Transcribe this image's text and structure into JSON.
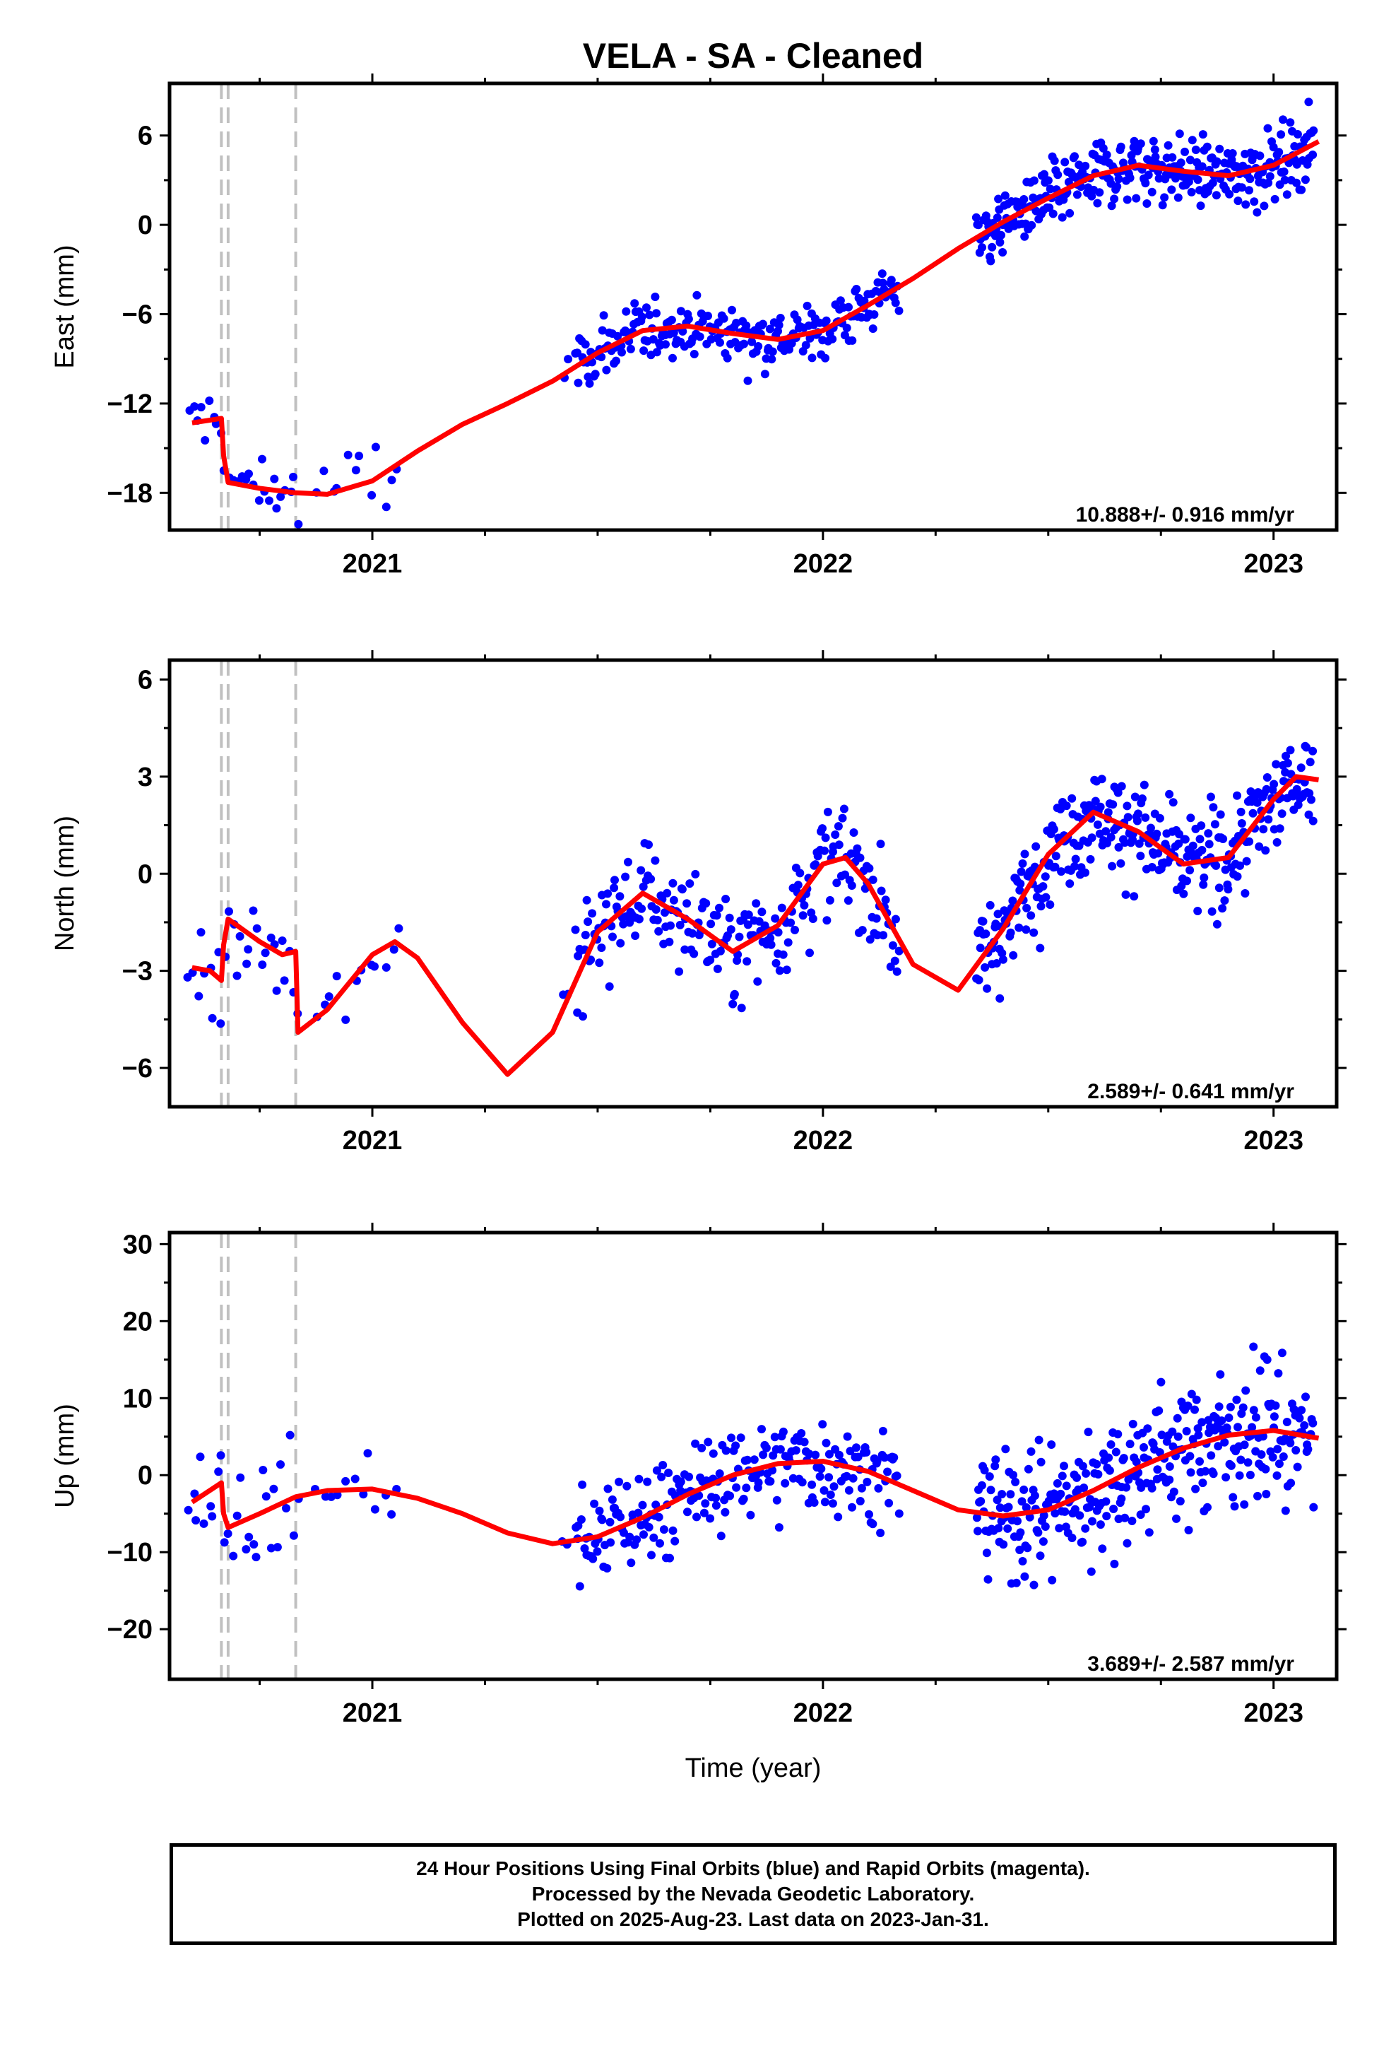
{
  "title": "VELA  - SA - Cleaned",
  "xlabel": "Time (year)",
  "caption": {
    "line1": "24 Hour Positions Using Final Orbits (blue) and Rapid Orbits (magenta).",
    "line2": "Processed by the Nevada Geodetic Laboratory.",
    "line3": "Plotted on 2025-Aug-23. Last data on 2023-Jan-31."
  },
  "colors": {
    "data": "#0000ff",
    "model": "#ff0000",
    "steps": "#c0c0c0",
    "frame": "#000000"
  },
  "chart_data": [
    {
      "type": "scatter",
      "panel": "East",
      "ylabel": "East (mm)",
      "rate_label": "10.888+/- 0.916 mm/yr",
      "xlim": [
        2020.55,
        2023.14
      ],
      "ylim": [
        -20.5,
        9.5
      ],
      "yticks": [
        -18,
        -12,
        -6,
        0,
        6
      ],
      "xticks": [
        2021,
        2022,
        2023
      ],
      "steps": [
        2020.665,
        2020.68,
        2020.83
      ],
      "model": [
        [
          2020.6,
          -13.3
        ],
        [
          2020.665,
          -13.0
        ],
        [
          2020.67,
          -15.5
        ],
        [
          2020.68,
          -17.3
        ],
        [
          2020.75,
          -17.7
        ],
        [
          2020.83,
          -18.0
        ],
        [
          2020.9,
          -18.1
        ],
        [
          2021.0,
          -17.2
        ],
        [
          2021.1,
          -15.2
        ],
        [
          2021.2,
          -13.4
        ],
        [
          2021.3,
          -12.0
        ],
        [
          2021.4,
          -10.5
        ],
        [
          2021.5,
          -8.6
        ],
        [
          2021.6,
          -7.1
        ],
        [
          2021.7,
          -6.8
        ],
        [
          2021.8,
          -7.3
        ],
        [
          2021.9,
          -7.7
        ],
        [
          2022.0,
          -7.1
        ],
        [
          2022.1,
          -5.4
        ],
        [
          2022.2,
          -3.6
        ],
        [
          2022.3,
          -1.6
        ],
        [
          2022.4,
          0.2
        ],
        [
          2022.5,
          1.8
        ],
        [
          2022.6,
          3.3
        ],
        [
          2022.7,
          4.0
        ],
        [
          2022.8,
          3.6
        ],
        [
          2022.9,
          3.3
        ],
        [
          2023.0,
          4.0
        ],
        [
          2023.1,
          5.6
        ]
      ],
      "clusters": [
        {
          "x0": 2020.59,
          "x1": 2020.84,
          "n": 28,
          "sd": 1.8
        },
        {
          "x0": 2020.87,
          "x1": 2021.07,
          "n": 12,
          "sd": 2.0
        },
        {
          "x0": 2021.42,
          "x1": 2021.44,
          "n": 2,
          "sd": 1.0
        },
        {
          "x0": 2021.45,
          "x1": 2022.17,
          "n": 230,
          "sd": 1.4
        },
        {
          "x0": 2022.34,
          "x1": 2023.09,
          "n": 330,
          "sd": 1.6
        }
      ]
    },
    {
      "type": "scatter",
      "panel": "North",
      "ylabel": "North (mm)",
      "rate_label": "2.589+/- 0.641 mm/yr",
      "xlim": [
        2020.55,
        2023.14
      ],
      "ylim": [
        -7.2,
        6.6
      ],
      "yticks": [
        -6,
        -3,
        0,
        3,
        6
      ],
      "xticks": [
        2021,
        2022,
        2023
      ],
      "steps": [
        2020.665,
        2020.68,
        2020.83
      ],
      "model": [
        [
          2020.6,
          -2.9
        ],
        [
          2020.64,
          -3.0
        ],
        [
          2020.665,
          -3.3
        ],
        [
          2020.67,
          -2.2
        ],
        [
          2020.68,
          -1.4
        ],
        [
          2020.75,
          -2.1
        ],
        [
          2020.8,
          -2.5
        ],
        [
          2020.83,
          -2.4
        ],
        [
          2020.835,
          -4.9
        ],
        [
          2020.9,
          -4.2
        ],
        [
          2021.0,
          -2.5
        ],
        [
          2021.05,
          -2.1
        ],
        [
          2021.1,
          -2.6
        ],
        [
          2021.2,
          -4.6
        ],
        [
          2021.3,
          -6.2
        ],
        [
          2021.4,
          -4.9
        ],
        [
          2021.5,
          -1.8
        ],
        [
          2021.6,
          -0.6
        ],
        [
          2021.7,
          -1.4
        ],
        [
          2021.8,
          -2.4
        ],
        [
          2021.9,
          -1.6
        ],
        [
          2022.0,
          0.3
        ],
        [
          2022.05,
          0.5
        ],
        [
          2022.1,
          -0.3
        ],
        [
          2022.2,
          -2.8
        ],
        [
          2022.3,
          -3.6
        ],
        [
          2022.4,
          -1.7
        ],
        [
          2022.5,
          0.6
        ],
        [
          2022.6,
          1.9
        ],
        [
          2022.7,
          1.3
        ],
        [
          2022.8,
          0.3
        ],
        [
          2022.9,
          0.5
        ],
        [
          2023.0,
          2.3
        ],
        [
          2023.05,
          3.0
        ],
        [
          2023.1,
          2.9
        ]
      ],
      "clusters": [
        {
          "x0": 2020.59,
          "x1": 2020.84,
          "n": 28,
          "sd": 1.1
        },
        {
          "x0": 2020.87,
          "x1": 2021.07,
          "n": 12,
          "sd": 0.9
        },
        {
          "x0": 2021.42,
          "x1": 2021.44,
          "n": 2,
          "sd": 0.5
        },
        {
          "x0": 2021.45,
          "x1": 2022.17,
          "n": 230,
          "sd": 1.2
        },
        {
          "x0": 2022.34,
          "x1": 2023.09,
          "n": 330,
          "sd": 1.1
        }
      ]
    },
    {
      "type": "scatter",
      "panel": "Up",
      "ylabel": "Up (mm)",
      "rate_label": "3.689+/- 2.587 mm/yr",
      "xlim": [
        2020.55,
        2023.14
      ],
      "ylim": [
        -26.5,
        31.5
      ],
      "yticks": [
        -20,
        -10,
        0,
        10,
        20,
        30
      ],
      "xticks": [
        2021,
        2022,
        2023
      ],
      "steps": [
        2020.665,
        2020.68,
        2020.83
      ],
      "model": [
        [
          2020.6,
          -3.5
        ],
        [
          2020.665,
          -1.0
        ],
        [
          2020.67,
          -5.0
        ],
        [
          2020.68,
          -6.8
        ],
        [
          2020.75,
          -5.0
        ],
        [
          2020.83,
          -2.8
        ],
        [
          2020.9,
          -2.0
        ],
        [
          2021.0,
          -1.8
        ],
        [
          2021.1,
          -3.0
        ],
        [
          2021.2,
          -5.0
        ],
        [
          2021.3,
          -7.5
        ],
        [
          2021.4,
          -8.9
        ],
        [
          2021.5,
          -8.0
        ],
        [
          2021.6,
          -5.5
        ],
        [
          2021.7,
          -2.5
        ],
        [
          2021.8,
          0.0
        ],
        [
          2021.9,
          1.5
        ],
        [
          2022.0,
          1.8
        ],
        [
          2022.1,
          0.5
        ],
        [
          2022.2,
          -2.0
        ],
        [
          2022.3,
          -4.5
        ],
        [
          2022.4,
          -5.3
        ],
        [
          2022.5,
          -4.5
        ],
        [
          2022.6,
          -2.0
        ],
        [
          2022.7,
          1.0
        ],
        [
          2022.8,
          3.5
        ],
        [
          2022.9,
          5.2
        ],
        [
          2023.0,
          5.8
        ],
        [
          2023.1,
          4.8
        ]
      ],
      "clusters": [
        {
          "x0": 2020.59,
          "x1": 2020.84,
          "n": 28,
          "sd": 5.0
        },
        {
          "x0": 2020.87,
          "x1": 2021.07,
          "n": 12,
          "sd": 3.0
        },
        {
          "x0": 2021.42,
          "x1": 2021.44,
          "n": 2,
          "sd": 3.0
        },
        {
          "x0": 2021.45,
          "x1": 2022.17,
          "n": 230,
          "sd": 4.5
        },
        {
          "x0": 2022.34,
          "x1": 2023.09,
          "n": 330,
          "sd": 6.0
        }
      ]
    }
  ]
}
